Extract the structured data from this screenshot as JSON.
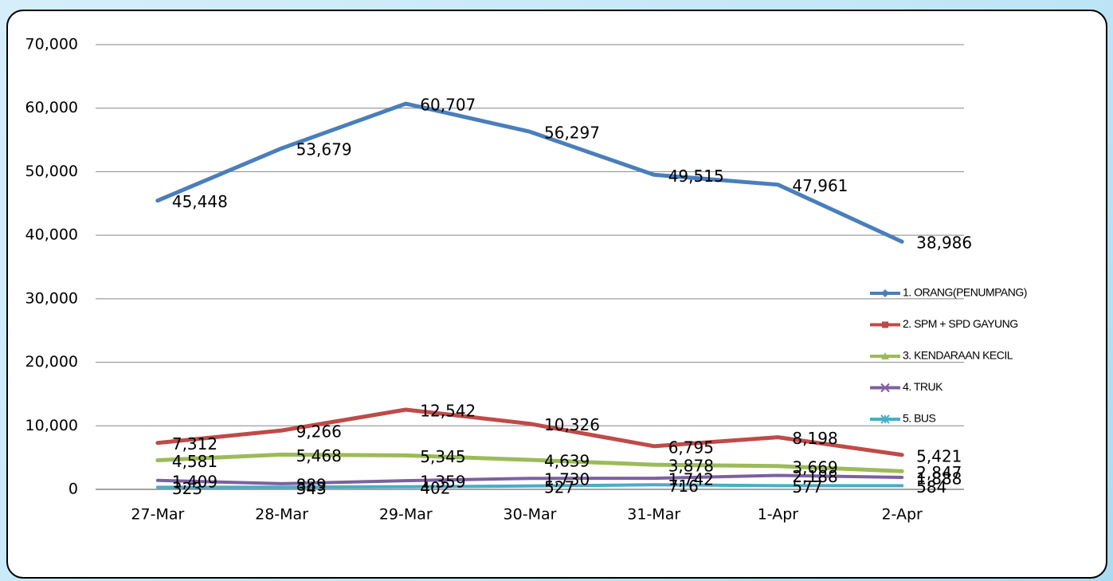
{
  "chart_data": {
    "type": "line",
    "categories": [
      "27-Mar",
      "28-Mar",
      "29-Mar",
      "30-Mar",
      "31-Mar",
      "1-Apr",
      "2-Apr"
    ],
    "series": [
      {
        "name": "1. ORANG(PENUMPANG)",
        "color": "#4a7ebb",
        "marker": "diamond",
        "values": [
          45448,
          53679,
          60707,
          56297,
          49515,
          47961,
          38986
        ],
        "value_labels": [
          "45,448",
          "53,679",
          "60,707",
          "56,297",
          "49,515",
          "47,961",
          "38,986"
        ]
      },
      {
        "name": "2. SPM + SPD GAYUNG",
        "color": "#be4b48",
        "marker": "square",
        "values": [
          7312,
          9266,
          12542,
          10326,
          6795,
          8198,
          5421
        ],
        "value_labels": [
          "7,312",
          "9,266",
          "12,542",
          "10,326",
          "6,795",
          "8,198",
          "5,421"
        ]
      },
      {
        "name": "3. KENDARAAN KECIL",
        "color": "#9bbb59",
        "marker": "triangle",
        "values": [
          4581,
          5468,
          5345,
          4639,
          3878,
          3669,
          2847
        ],
        "value_labels": [
          "4,581",
          "5,468",
          "5,345",
          "4,639",
          "3,878",
          "3,669",
          "2,847"
        ]
      },
      {
        "name": "4. TRUK",
        "color": "#7d60a0",
        "marker": "x",
        "values": [
          1409,
          889,
          1359,
          1730,
          1742,
          2188,
          1888
        ],
        "value_labels": [
          "1,409",
          "889",
          "1,359",
          "1,730",
          "1,742",
          "2,188",
          "1,888"
        ]
      },
      {
        "name": "5. BUS",
        "color": "#4bacc6",
        "marker": "star",
        "values": [
          323,
          343,
          402,
          527,
          716,
          577,
          584
        ]
      }
    ],
    "ylim": [
      0,
      70000
    ],
    "yticks": [
      0,
      {
        "value": 10000,
        "label": "10,000"
      },
      {
        "value": 20000,
        "label": "20,000"
      },
      {
        "value": 30000,
        "label": "30,000"
      },
      {
        "value": 40000,
        "label": "40,000"
      },
      {
        "value": 50000,
        "label": "50,000"
      },
      {
        "value": 60000,
        "label": "60,000"
      },
      {
        "value": 70000,
        "label": "70,000"
      }
    ],
    "grid": true,
    "legend": "right"
  }
}
